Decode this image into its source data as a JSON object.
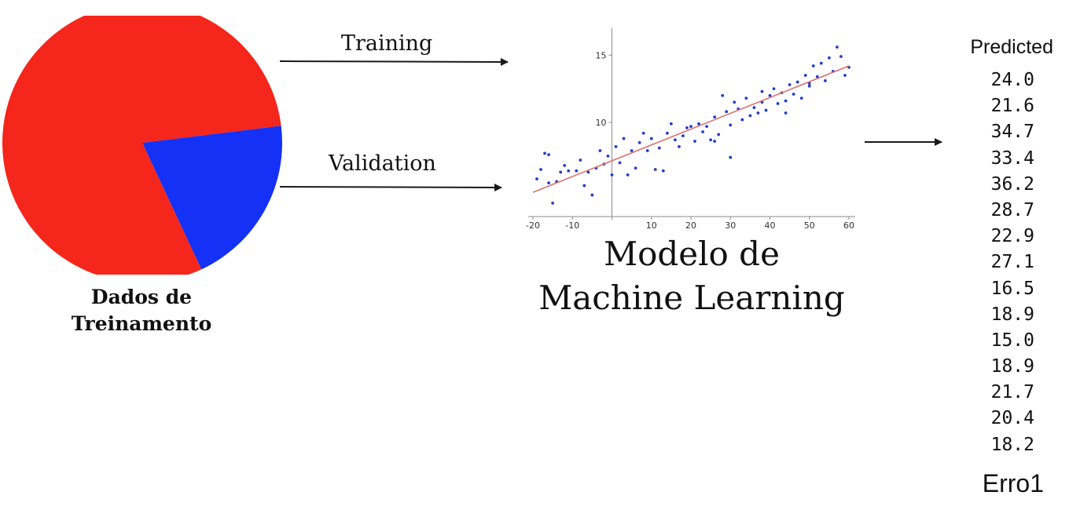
{
  "colors": {
    "training_slice": "#f5261b",
    "validation_slice": "#1431f5",
    "scatter_points": "#1f3ec8",
    "fit_line": "#e0706a",
    "text": "#111111"
  },
  "pie": {
    "label_line1": "Dados de",
    "label_line2": "Treinamento"
  },
  "arrows": {
    "training_label": "Training",
    "validation_label": "Validation"
  },
  "model": {
    "title_line1": "Modelo de",
    "title_line2": "Machine Learning"
  },
  "predicted": {
    "header": "Predicted",
    "values": [
      "24.0",
      "21.6",
      "34.7",
      "33.4",
      "36.2",
      "28.7",
      "22.9",
      "27.1",
      "16.5",
      "18.9",
      "15.0",
      "18.9",
      "21.7",
      "20.4",
      "18.2"
    ],
    "error_label": "Erro1"
  },
  "chart_data": [
    {
      "type": "pie",
      "slices": [
        {
          "name": "",
          "value": 80,
          "color": "#f5261b"
        },
        {
          "name": "",
          "value": 20,
          "color": "#1431f5"
        }
      ]
    },
    {
      "type": "scatter",
      "xlim": [
        -20,
        60
      ],
      "ylim": [
        3,
        17
      ],
      "xticks": [
        -20,
        -10,
        0,
        10,
        20,
        30,
        40,
        50,
        60
      ],
      "yticks": [
        10,
        15
      ],
      "x_tick_labels": [
        "-20",
        "-10",
        "",
        "10",
        "20",
        "30",
        "40",
        "50",
        "60"
      ],
      "y_tick_labels": [
        "10",
        "15"
      ],
      "grid": false,
      "fit_line": {
        "x": [
          -20,
          60
        ],
        "y": [
          4.8,
          14.2
        ]
      },
      "points": [
        [
          -19,
          5.8
        ],
        [
          -18,
          6.5
        ],
        [
          -17,
          7.7
        ],
        [
          -16,
          7.6
        ],
        [
          -16,
          5.5
        ],
        [
          -15,
          4.0
        ],
        [
          -14,
          5.6
        ],
        [
          -13,
          6.3
        ],
        [
          -12,
          6.8
        ],
        [
          -11,
          6.4
        ],
        [
          -9,
          6.4
        ],
        [
          -8,
          7.2
        ],
        [
          -7,
          5.3
        ],
        [
          -6,
          6.3
        ],
        [
          -5,
          4.6
        ],
        [
          -4,
          6.6
        ],
        [
          -3,
          7.9
        ],
        [
          -2,
          6.9
        ],
        [
          -1,
          7.5
        ],
        [
          0,
          6.1
        ],
        [
          1,
          8.2
        ],
        [
          2,
          7.0
        ],
        [
          3,
          8.8
        ],
        [
          4,
          6.1
        ],
        [
          5,
          7.9
        ],
        [
          6,
          6.6
        ],
        [
          7,
          8.5
        ],
        [
          8,
          9.2
        ],
        [
          9,
          7.9
        ],
        [
          10,
          8.8
        ],
        [
          11,
          6.5
        ],
        [
          12,
          8.1
        ],
        [
          13,
          6.4
        ],
        [
          14,
          9.2
        ],
        [
          15,
          9.9
        ],
        [
          16,
          8.7
        ],
        [
          17,
          8.2
        ],
        [
          18,
          9.0
        ],
        [
          20,
          9.7
        ],
        [
          21,
          8.6
        ],
        [
          22,
          9.9
        ],
        [
          23,
          9.3
        ],
        [
          24,
          9.7
        ],
        [
          25,
          8.7
        ],
        [
          26,
          10.4
        ],
        [
          27,
          9.1
        ],
        [
          28,
          12.0
        ],
        [
          29,
          10.8
        ],
        [
          30,
          9.8
        ],
        [
          31,
          11.5
        ],
        [
          32,
          11.0
        ],
        [
          33,
          10.2
        ],
        [
          34,
          11.8
        ],
        [
          35,
          10.5
        ],
        [
          36,
          11.1
        ],
        [
          37,
          10.7
        ],
        [
          38,
          12.3
        ],
        [
          39,
          10.9
        ],
        [
          40,
          12.0
        ],
        [
          41,
          12.5
        ],
        [
          42,
          11.4
        ],
        [
          43,
          12.2
        ],
        [
          44,
          11.6
        ],
        [
          45,
          12.8
        ],
        [
          46,
          12.1
        ],
        [
          47,
          13.0
        ],
        [
          48,
          11.8
        ],
        [
          49,
          13.5
        ],
        [
          50,
          12.7
        ],
        [
          51,
          14.2
        ],
        [
          52,
          13.4
        ],
        [
          53,
          14.4
        ],
        [
          54,
          13.1
        ],
        [
          55,
          14.8
        ],
        [
          56,
          13.8
        ],
        [
          57,
          15.6
        ],
        [
          58,
          14.9
        ],
        [
          59,
          13.5
        ],
        [
          60,
          14.1
        ],
        [
          30,
          7.4
        ],
        [
          26,
          8.6
        ],
        [
          19,
          9.6
        ],
        [
          38,
          11.5
        ],
        [
          44,
          10.7
        ],
        [
          50,
          12.9
        ]
      ]
    }
  ]
}
